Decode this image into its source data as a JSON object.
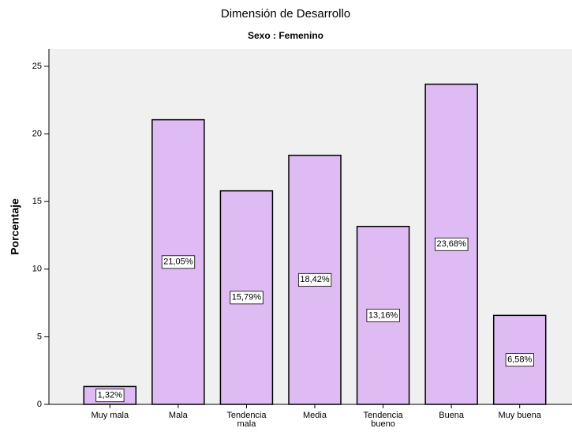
{
  "chart_data": {
    "type": "bar",
    "title": "Dimensión de Desarrollo",
    "subtitle": "Sexo : Femenino",
    "y_label": "Porcentaje",
    "categories": [
      "Muy mala",
      "Mala",
      "Tendencia mala",
      "Media",
      "Tendencia bueno",
      "Buena",
      "Muy buena"
    ],
    "values": [
      1.32,
      21.05,
      15.79,
      18.42,
      13.16,
      23.68,
      6.58
    ],
    "value_labels": [
      "1,32%",
      "21,05%",
      "15,79%",
      "18,42%",
      "13,16%",
      "23,68%",
      "6,58%"
    ],
    "color": "#dfbbf3",
    "ylim": [
      0,
      25
    ],
    "yticks": [
      0,
      5,
      10,
      15,
      20,
      25
    ]
  }
}
